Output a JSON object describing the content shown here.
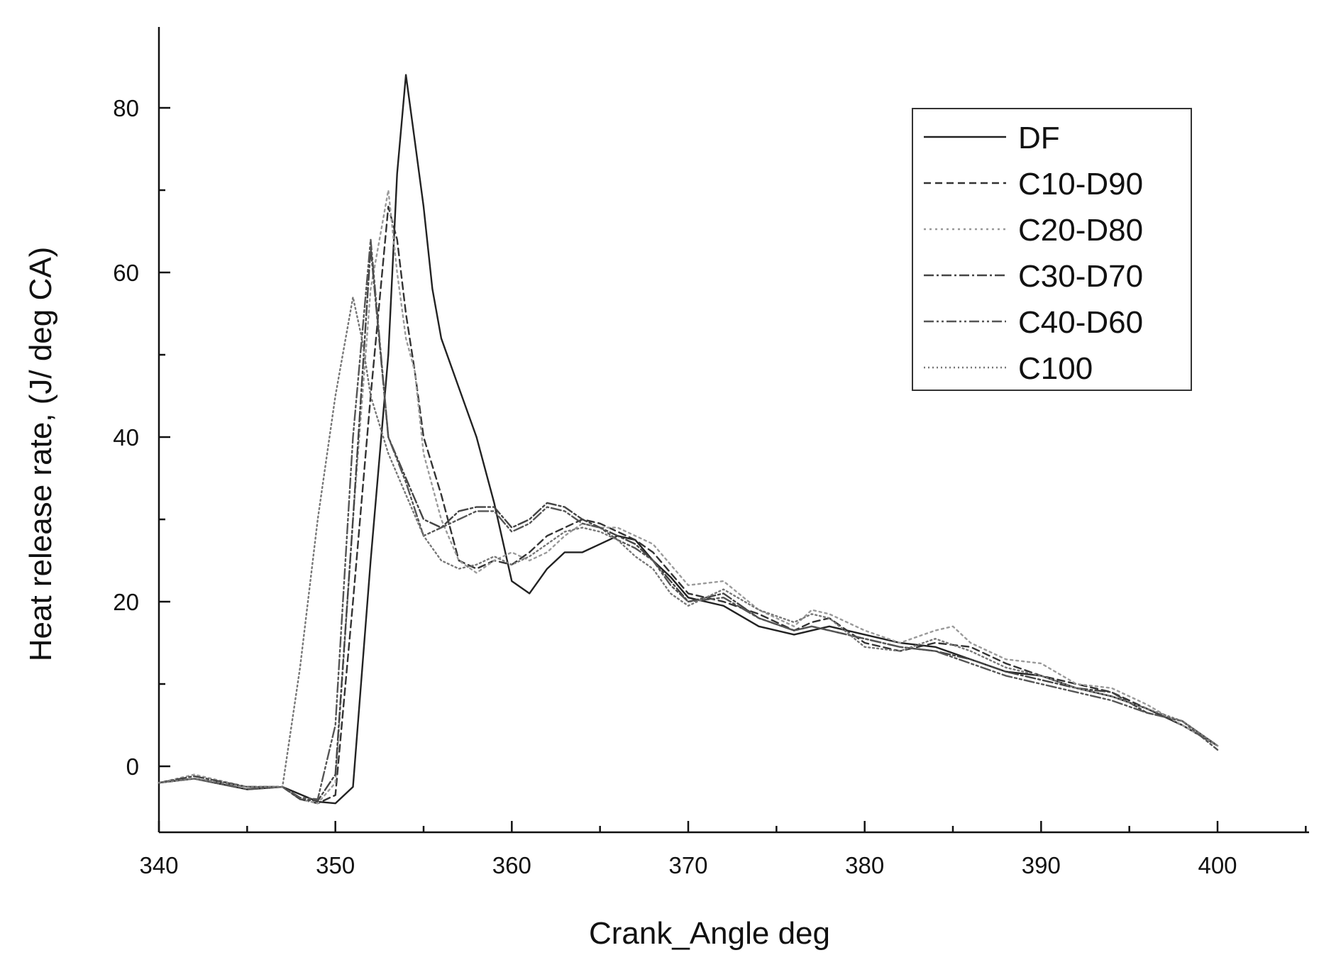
{
  "chart_data": {
    "type": "line",
    "title": "",
    "xlabel": "Crank_Angle deg",
    "ylabel": "Heat release rate, (J/ deg CA)",
    "xlim": [
      340,
      405
    ],
    "ylim": [
      -8,
      90
    ],
    "x_ticks": [
      340,
      350,
      360,
      370,
      380,
      390,
      400
    ],
    "y_ticks": [
      0,
      20,
      40,
      60,
      80
    ],
    "grid": false,
    "legend_position": "top-right",
    "series": [
      {
        "name": "DF",
        "color": "#222222",
        "dash": "",
        "x": [
          340,
          342,
          345,
          347,
          349,
          350,
          351,
          352,
          353,
          353.5,
          354,
          354.5,
          355,
          355.5,
          356,
          357,
          358,
          359,
          360,
          361,
          362,
          363,
          364,
          365,
          366,
          367,
          368,
          369,
          370,
          372,
          374,
          376,
          377,
          378,
          380,
          382,
          384,
          386,
          388,
          390,
          392,
          394,
          396,
          398,
          400
        ],
        "y": [
          -2,
          -1.5,
          -2.8,
          -2.5,
          -4.3,
          -4.5,
          -2.5,
          25,
          50,
          72,
          84,
          76,
          68,
          58,
          52,
          46,
          40,
          32,
          22.5,
          21,
          24,
          26,
          26,
          27,
          28,
          27.5,
          25,
          23,
          20.5,
          19.5,
          17,
          16,
          16.5,
          17,
          16,
          15,
          14.5,
          13,
          11.5,
          11,
          9.5,
          8.5,
          7,
          5,
          2.5
        ]
      },
      {
        "name": "C10-D90",
        "color": "#333333",
        "dash": "10,6",
        "x": [
          340,
          342,
          345,
          347,
          348,
          349,
          350,
          351,
          352,
          353,
          353.5,
          354,
          354.5,
          355,
          356,
          357,
          358,
          359,
          360,
          361,
          362,
          363,
          364,
          365,
          366,
          367,
          368,
          370,
          372,
          374,
          376,
          377,
          378,
          380,
          382,
          384,
          386,
          388,
          390,
          392,
          394,
          396,
          398,
          400
        ],
        "y": [
          -2,
          -1.5,
          -2.5,
          -2.5,
          -4,
          -4.5,
          -3.5,
          20,
          45,
          68,
          64,
          55,
          48,
          40,
          33,
          25,
          24,
          25,
          24.5,
          26,
          28,
          29,
          30,
          29.5,
          28.5,
          27.5,
          26,
          21,
          20,
          18.5,
          16.5,
          17.5,
          18,
          15,
          14,
          15,
          14.5,
          12.5,
          11,
          10,
          9,
          7,
          5,
          2.5
        ]
      },
      {
        "name": "C20-D80",
        "color": "#9a9a9a",
        "dash": "3,5",
        "x": [
          340,
          342,
          345,
          347,
          348,
          349,
          350,
          351,
          352,
          353,
          353.5,
          354,
          354.5,
          355,
          356,
          357,
          358,
          359,
          360,
          361,
          362,
          363,
          364,
          365,
          366,
          367,
          368,
          370,
          372,
          374,
          376,
          377,
          378,
          380,
          382,
          384,
          385,
          386,
          388,
          390,
          392,
          394,
          396,
          398,
          400
        ],
        "y": [
          -2,
          -1,
          -2.5,
          -2.5,
          -4,
          -4.5,
          -2,
          30,
          58,
          70,
          60,
          52,
          48,
          38,
          30,
          25,
          23.5,
          25,
          26,
          25,
          26,
          28,
          29.5,
          29,
          29,
          28,
          27,
          22,
          22.5,
          19,
          17,
          19,
          18.5,
          16.5,
          15,
          16.5,
          17,
          15,
          13,
          12.5,
          10,
          9.5,
          7.5,
          5,
          2.5
        ]
      },
      {
        "name": "C30-D70",
        "color": "#444444",
        "dash": "14,4,3,4",
        "x": [
          340,
          342,
          345,
          347,
          348,
          349,
          350,
          351,
          352,
          353,
          354,
          355,
          356,
          357,
          358,
          359,
          360,
          361,
          362,
          363,
          364,
          365,
          366,
          367,
          368,
          369,
          370,
          372,
          374,
          376,
          377,
          378,
          380,
          382,
          384,
          386,
          388,
          390,
          392,
          394,
          396,
          398,
          400
        ],
        "y": [
          -2,
          -1.2,
          -2.5,
          -2.5,
          -4,
          -4.2,
          -1,
          30,
          63,
          40,
          35,
          30,
          29,
          31,
          31.5,
          31.5,
          29,
          30,
          32,
          31.5,
          30,
          29,
          28,
          27,
          25,
          22.5,
          20,
          21,
          18,
          16.5,
          17,
          16.5,
          15.5,
          14.5,
          14,
          13,
          11.5,
          10.5,
          9.5,
          9,
          6.5,
          5.5,
          2.5
        ]
      },
      {
        "name": "C40-D60",
        "color": "#555555",
        "dash": "14,4,3,4,3,4",
        "x": [
          340,
          342,
          345,
          347,
          348,
          349,
          350,
          351,
          352,
          353,
          354,
          355,
          356,
          357,
          358,
          359,
          360,
          361,
          362,
          363,
          364,
          365,
          366,
          367,
          368,
          369,
          370,
          372,
          374,
          376,
          377,
          378,
          380,
          382,
          384,
          386,
          388,
          390,
          392,
          394,
          396,
          398,
          400
        ],
        "y": [
          -2,
          -1.5,
          -2.8,
          -2.5,
          -3.8,
          -4,
          5,
          40,
          64,
          40,
          34.5,
          28,
          29,
          30,
          31,
          31,
          28.5,
          29.5,
          31.5,
          31,
          29.5,
          29,
          27.5,
          26.5,
          25,
          22,
          20,
          20.5,
          18,
          16.5,
          17,
          16.5,
          15.5,
          14.5,
          14,
          12.5,
          11,
          10,
          9,
          8,
          6.5,
          5.5,
          2
        ]
      },
      {
        "name": "C100",
        "color": "#777777",
        "dash": "2,4",
        "x": [
          340,
          342,
          345,
          347,
          348,
          349,
          350,
          351,
          351.5,
          352,
          353,
          354,
          355,
          356,
          357,
          358,
          359,
          360,
          361,
          362,
          363,
          364,
          365,
          366,
          367,
          368,
          369,
          370,
          372,
          374,
          376,
          377,
          378,
          380,
          382,
          384,
          386,
          388,
          390,
          392,
          394,
          396,
          398,
          400
        ],
        "y": [
          -2,
          -1.5,
          -2.5,
          -2.5,
          12,
          30,
          45,
          57,
          52,
          45,
          38,
          33,
          28,
          25,
          24,
          24.5,
          25.5,
          24.5,
          25.5,
          27,
          28.5,
          29,
          28.5,
          27.5,
          25.5,
          24,
          21,
          19.5,
          21.5,
          19,
          17.5,
          18.5,
          18,
          14.5,
          14,
          15.5,
          14,
          12,
          11,
          9.5,
          8.5,
          7,
          5.5,
          2.5
        ]
      }
    ]
  }
}
